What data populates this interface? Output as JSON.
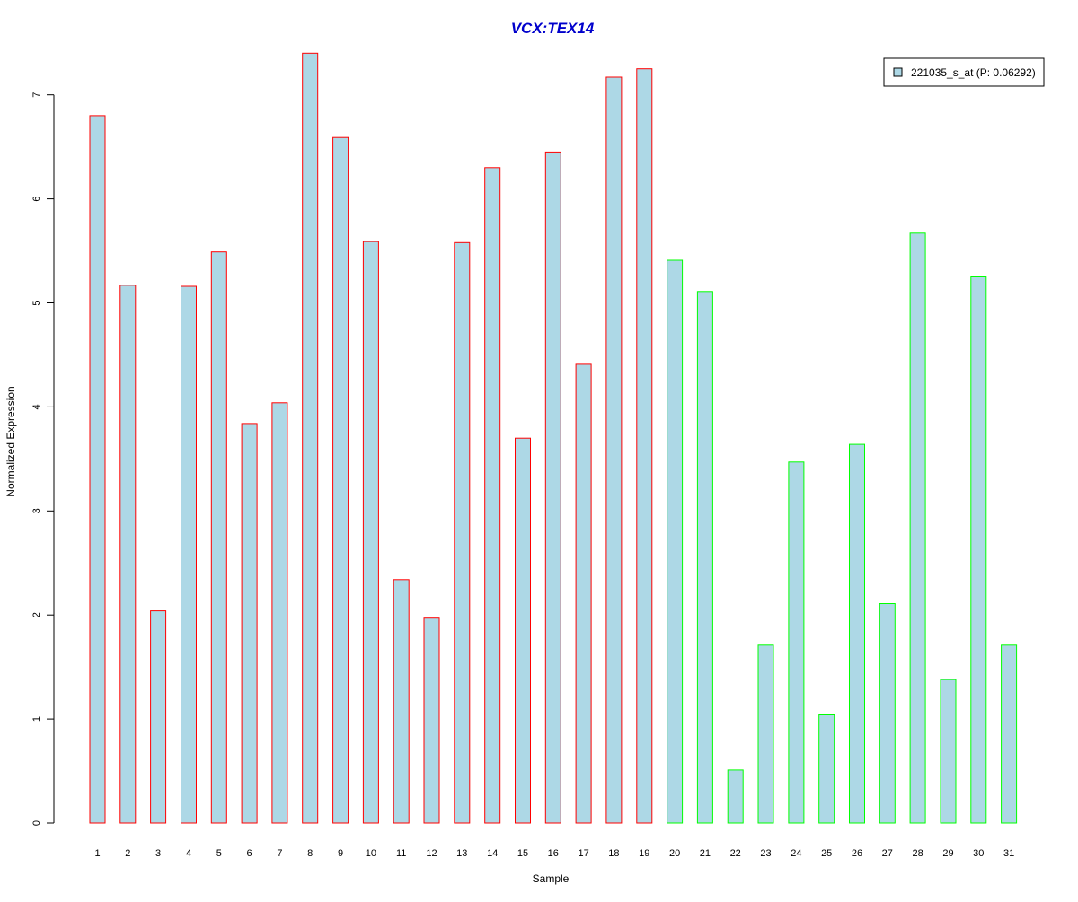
{
  "chart_data": {
    "type": "bar",
    "title": "VCX:TEX14",
    "xlabel": "Sample",
    "ylabel": "Normalized Expression",
    "ylim": [
      0,
      7
    ],
    "yticks": [
      0,
      1,
      2,
      3,
      4,
      5,
      6,
      7
    ],
    "grid": false,
    "legend_position": "top-right",
    "categories": [
      "1",
      "2",
      "3",
      "4",
      "5",
      "6",
      "7",
      "8",
      "9",
      "10",
      "11",
      "12",
      "13",
      "14",
      "15",
      "16",
      "17",
      "18",
      "19",
      "20",
      "21",
      "22",
      "23",
      "24",
      "25",
      "26",
      "27",
      "28",
      "29",
      "30",
      "31"
    ],
    "series": [
      {
        "name": "221035_s_at (P: 0.06292)",
        "fill_color": "#add8e6",
        "values": [
          6.8,
          5.17,
          2.04,
          5.16,
          5.49,
          3.84,
          4.04,
          7.4,
          6.59,
          5.59,
          2.34,
          1.97,
          5.58,
          6.3,
          3.7,
          6.45,
          4.41,
          7.17,
          7.25,
          5.41,
          5.11,
          0.51,
          1.71,
          3.47,
          1.04,
          3.64,
          2.11,
          5.67,
          1.38,
          5.25,
          1.71
        ],
        "outline_colors": [
          "#ff0000",
          "#ff0000",
          "#ff0000",
          "#ff0000",
          "#ff0000",
          "#ff0000",
          "#ff0000",
          "#ff0000",
          "#ff0000",
          "#ff0000",
          "#ff0000",
          "#ff0000",
          "#ff0000",
          "#ff0000",
          "#ff0000",
          "#ff0000",
          "#ff0000",
          "#ff0000",
          "#ff0000",
          "#00ff00",
          "#00ff00",
          "#00ff00",
          "#00ff00",
          "#00ff00",
          "#00ff00",
          "#00ff00",
          "#00ff00",
          "#00ff00",
          "#00ff00",
          "#00ff00",
          "#00ff00"
        ]
      }
    ],
    "colors": {
      "title": "#0000cc",
      "axis": "#000000",
      "group_a_outline": "#ff0000",
      "group_b_outline": "#00ff00"
    }
  }
}
